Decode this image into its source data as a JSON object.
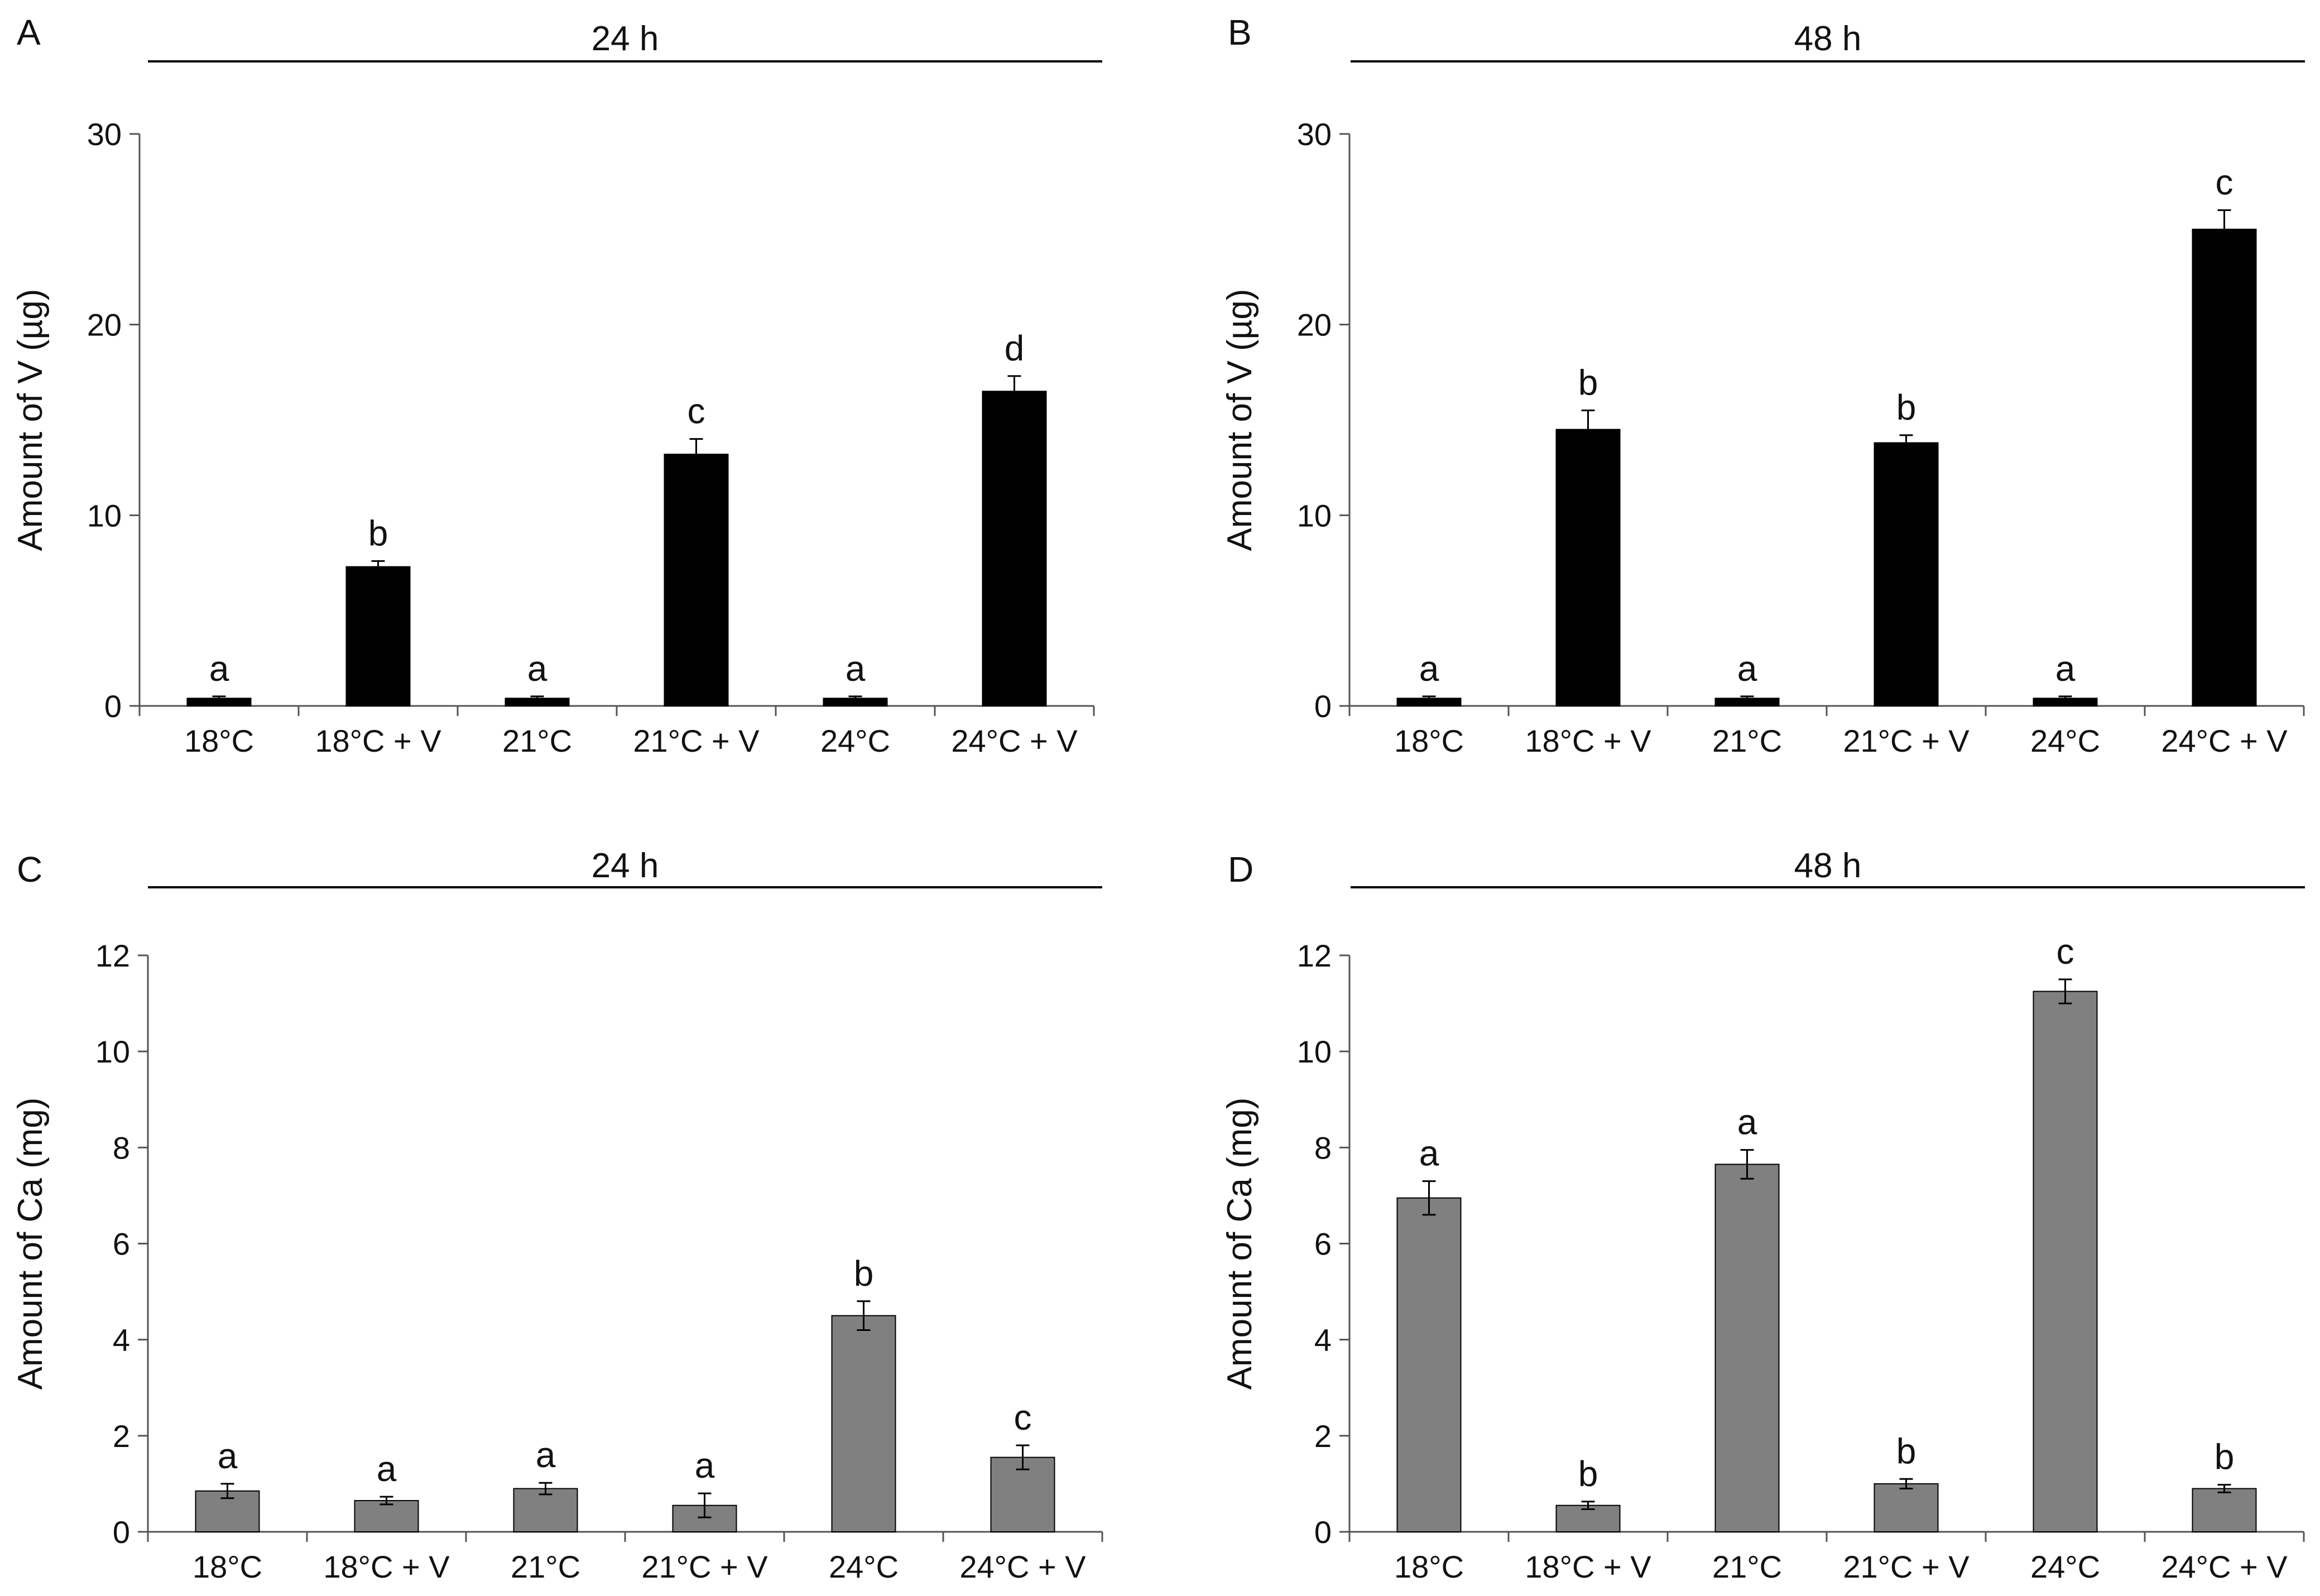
{
  "figure": {
    "panels": [
      {
        "letter": "A",
        "title": "24 h",
        "chart_data": {
          "type": "bar",
          "title": "24 h",
          "xlabel": "",
          "ylabel": "Amount of V (µg)",
          "ylim": [
            0,
            30
          ],
          "yticks": [
            "0",
            "10",
            "20",
            "30"
          ],
          "categories": [
            "18°C",
            "18°C + V",
            "21°C",
            "21°C + V",
            "24°C",
            "24°C + V"
          ],
          "series": [
            {
              "name": "V",
              "color": "#000000",
              "values": [
                0.4,
                7.3,
                0.4,
                13.2,
                0.4,
                16.5
              ],
              "errors": [
                0.1,
                0.3,
                0.1,
                0.8,
                0.1,
                0.8
              ],
              "labels": [
                "a",
                "b",
                "a",
                "c",
                "a",
                "d"
              ]
            }
          ]
        }
      },
      {
        "letter": "B",
        "title": "48 h",
        "chart_data": {
          "type": "bar",
          "title": "48 h",
          "xlabel": "",
          "ylabel": "Amount of V (µg)",
          "ylim": [
            0,
            30
          ],
          "yticks": [
            "0",
            "10",
            "20",
            "30"
          ],
          "categories": [
            "18°C",
            "18°C + V",
            "21°C",
            "21°C + V",
            "24°C",
            "24°C + V"
          ],
          "series": [
            {
              "name": "V",
              "color": "#000000",
              "values": [
                0.4,
                14.5,
                0.4,
                13.8,
                0.4,
                25.0
              ],
              "errors": [
                0.1,
                1.0,
                0.1,
                0.4,
                0.1,
                1.0
              ],
              "labels": [
                "a",
                "b",
                "a",
                "b",
                "a",
                "c"
              ]
            }
          ]
        }
      },
      {
        "letter": "C",
        "title": "24 h",
        "chart_data": {
          "type": "bar",
          "title": "24 h",
          "xlabel": "",
          "ylabel": "Amount of Ca (mg)",
          "ylim": [
            0,
            12
          ],
          "yticks": [
            "0",
            "2",
            "4",
            "6",
            "8",
            "10",
            "12"
          ],
          "categories": [
            "18°C",
            "18°C + V",
            "21°C",
            "21°C + V",
            "24°C",
            "24°C + V"
          ],
          "series": [
            {
              "name": "Ca",
              "color": "#808080",
              "values": [
                0.85,
                0.65,
                0.9,
                0.55,
                4.5,
                1.55
              ],
              "errors": [
                0.15,
                0.08,
                0.12,
                0.25,
                0.3,
                0.25
              ],
              "labels": [
                "a",
                "a",
                "a",
                "a",
                "b",
                "c"
              ]
            }
          ]
        }
      },
      {
        "letter": "D",
        "title": "48 h",
        "chart_data": {
          "type": "bar",
          "title": "48 h",
          "xlabel": "",
          "ylabel": "Amount of Ca (mg)",
          "ylim": [
            0,
            12
          ],
          "yticks": [
            "0",
            "2",
            "4",
            "6",
            "8",
            "10",
            "12"
          ],
          "categories": [
            "18°C",
            "18°C + V",
            "21°C",
            "21°C + V",
            "24°C",
            "24°C + V"
          ],
          "series": [
            {
              "name": "Ca",
              "color": "#808080",
              "values": [
                6.95,
                0.55,
                7.65,
                1.0,
                11.25,
                0.9
              ],
              "errors": [
                0.35,
                0.08,
                0.3,
                0.1,
                0.25,
                0.08
              ],
              "labels": [
                "a",
                "b",
                "a",
                "b",
                "c",
                "b"
              ]
            }
          ]
        }
      }
    ]
  }
}
